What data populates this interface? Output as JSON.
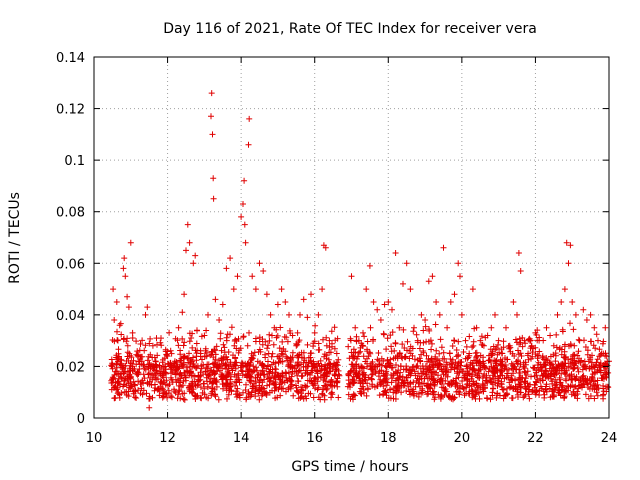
{
  "chart_data": {
    "type": "scatter",
    "title": "Day 116 of 2021, Rate Of TEC Index for receiver vera",
    "xlabel": "GPS time / hours",
    "ylabel": "ROTI / TECUs",
    "xlim": [
      10,
      24
    ],
    "ylim": [
      0,
      0.14
    ],
    "xticks": [
      10,
      12,
      14,
      16,
      18,
      20,
      22,
      24
    ],
    "xtick_labels": [
      "10",
      "12",
      "14",
      "16",
      "18",
      "20",
      "22",
      "24"
    ],
    "yticks": [
      0,
      0.02,
      0.04,
      0.06,
      0.08,
      0.1,
      0.12,
      0.14
    ],
    "ytick_labels": [
      "0",
      "0.02",
      "0.04",
      "0.06",
      "0.08",
      "0.1",
      "0.12",
      "0.14"
    ],
    "grid": true,
    "marker": "+",
    "color": "#e00000",
    "data_gap_hours": [
      16.7,
      16.9
    ],
    "series": [
      {
        "name": "ROTI",
        "points": [
          [
            10.5,
            0.015
          ],
          [
            10.52,
            0.05
          ],
          [
            10.55,
            0.038
          ],
          [
            10.6,
            0.011
          ],
          [
            10.62,
            0.045
          ],
          [
            10.65,
            0.03
          ],
          [
            10.7,
            0.036
          ],
          [
            10.75,
            0.021
          ],
          [
            10.8,
            0.058
          ],
          [
            10.82,
            0.062
          ],
          [
            10.85,
            0.055
          ],
          [
            10.9,
            0.047
          ],
          [
            10.92,
            0.028
          ],
          [
            10.95,
            0.043
          ],
          [
            11.0,
            0.068
          ],
          [
            11.05,
            0.033
          ],
          [
            11.1,
            0.019
          ],
          [
            11.2,
            0.024
          ],
          [
            11.3,
            0.022
          ],
          [
            11.4,
            0.04
          ],
          [
            11.45,
            0.043
          ],
          [
            11.5,
            0.004
          ],
          [
            11.6,
            0.028
          ],
          [
            11.7,
            0.031
          ],
          [
            11.8,
            0.018
          ],
          [
            11.9,
            0.02
          ],
          [
            12.0,
            0.024
          ],
          [
            12.1,
            0.02
          ],
          [
            12.2,
            0.022
          ],
          [
            12.3,
            0.035
          ],
          [
            12.4,
            0.041
          ],
          [
            12.45,
            0.048
          ],
          [
            12.5,
            0.065
          ],
          [
            12.55,
            0.075
          ],
          [
            12.6,
            0.068
          ],
          [
            12.7,
            0.06
          ],
          [
            12.75,
            0.063
          ],
          [
            12.8,
            0.034
          ],
          [
            12.9,
            0.025
          ],
          [
            13.0,
            0.032
          ],
          [
            13.1,
            0.04
          ],
          [
            13.18,
            0.117
          ],
          [
            13.2,
            0.126
          ],
          [
            13.22,
            0.11
          ],
          [
            13.24,
            0.093
          ],
          [
            13.25,
            0.085
          ],
          [
            13.3,
            0.046
          ],
          [
            13.4,
            0.038
          ],
          [
            13.5,
            0.044
          ],
          [
            13.6,
            0.058
          ],
          [
            13.7,
            0.062
          ],
          [
            13.8,
            0.05
          ],
          [
            13.9,
            0.055
          ],
          [
            14.0,
            0.078
          ],
          [
            14.05,
            0.083
          ],
          [
            14.08,
            0.092
          ],
          [
            14.1,
            0.075
          ],
          [
            14.12,
            0.068
          ],
          [
            14.2,
            0.106
          ],
          [
            14.22,
            0.116
          ],
          [
            14.3,
            0.055
          ],
          [
            14.4,
            0.05
          ],
          [
            14.5,
            0.06
          ],
          [
            14.6,
            0.057
          ],
          [
            14.7,
            0.048
          ],
          [
            14.8,
            0.04
          ],
          [
            14.9,
            0.035
          ],
          [
            15.0,
            0.044
          ],
          [
            15.1,
            0.05
          ],
          [
            15.2,
            0.045
          ],
          [
            15.3,
            0.04
          ],
          [
            15.4,
            0.032
          ],
          [
            15.5,
            0.028
          ],
          [
            15.6,
            0.04
          ],
          [
            15.7,
            0.046
          ],
          [
            15.8,
            0.039
          ],
          [
            15.9,
            0.048
          ],
          [
            16.0,
            0.033
          ],
          [
            16.1,
            0.04
          ],
          [
            16.2,
            0.05
          ],
          [
            16.25,
            0.067
          ],
          [
            16.3,
            0.066
          ],
          [
            16.4,
            0.03
          ],
          [
            16.5,
            0.02
          ],
          [
            16.6,
            0.025
          ],
          [
            17.0,
            0.055
          ],
          [
            17.1,
            0.035
          ],
          [
            17.2,
            0.03
          ],
          [
            17.3,
            0.028
          ],
          [
            17.4,
            0.05
          ],
          [
            17.5,
            0.059
          ],
          [
            17.6,
            0.045
          ],
          [
            17.7,
            0.042
          ],
          [
            17.8,
            0.038
          ],
          [
            17.9,
            0.044
          ],
          [
            18.0,
            0.045
          ],
          [
            18.1,
            0.042
          ],
          [
            18.2,
            0.064
          ],
          [
            18.3,
            0.035
          ],
          [
            18.4,
            0.052
          ],
          [
            18.5,
            0.06
          ],
          [
            18.6,
            0.05
          ],
          [
            18.7,
            0.035
          ],
          [
            18.8,
            0.03
          ],
          [
            18.9,
            0.04
          ],
          [
            19.0,
            0.038
          ],
          [
            19.1,
            0.053
          ],
          [
            19.2,
            0.055
          ],
          [
            19.3,
            0.045
          ],
          [
            19.4,
            0.04
          ],
          [
            19.5,
            0.066
          ],
          [
            19.6,
            0.035
          ],
          [
            19.7,
            0.045
          ],
          [
            19.8,
            0.048
          ],
          [
            19.9,
            0.06
          ],
          [
            19.95,
            0.055
          ],
          [
            20.0,
            0.04
          ],
          [
            20.1,
            0.03
          ],
          [
            20.2,
            0.025
          ],
          [
            20.3,
            0.05
          ],
          [
            20.4,
            0.035
          ],
          [
            20.5,
            0.03
          ],
          [
            20.6,
            0.028
          ],
          [
            20.7,
            0.032
          ],
          [
            20.8,
            0.035
          ],
          [
            20.9,
            0.04
          ],
          [
            21.0,
            0.03
          ],
          [
            21.1,
            0.025
          ],
          [
            21.2,
            0.035
          ],
          [
            21.3,
            0.028
          ],
          [
            21.4,
            0.045
          ],
          [
            21.5,
            0.04
          ],
          [
            21.55,
            0.064
          ],
          [
            21.6,
            0.057
          ],
          [
            21.7,
            0.03
          ],
          [
            21.8,
            0.025
          ],
          [
            21.9,
            0.028
          ],
          [
            22.0,
            0.033
          ],
          [
            22.1,
            0.03
          ],
          [
            22.2,
            0.024
          ],
          [
            22.3,
            0.035
          ],
          [
            22.4,
            0.032
          ],
          [
            22.5,
            0.028
          ],
          [
            22.6,
            0.04
          ],
          [
            22.7,
            0.045
          ],
          [
            22.8,
            0.05
          ],
          [
            22.85,
            0.068
          ],
          [
            22.9,
            0.06
          ],
          [
            22.95,
            0.067
          ],
          [
            23.0,
            0.045
          ],
          [
            23.1,
            0.04
          ],
          [
            23.2,
            0.03
          ],
          [
            23.3,
            0.042
          ],
          [
            23.4,
            0.038
          ],
          [
            23.5,
            0.04
          ],
          [
            23.6,
            0.035
          ],
          [
            23.7,
            0.03
          ],
          [
            23.8,
            0.025
          ],
          [
            23.9,
            0.035
          ],
          [
            24.0,
            0.022
          ]
        ],
        "dense_band": {
          "segments": [
            [
              10.45,
              16.7
            ],
            [
              16.9,
              24.0
            ]
          ],
          "floor": 0.005,
          "base": 0.014,
          "typical_max": 0.03,
          "count": 2400
        }
      }
    ]
  }
}
